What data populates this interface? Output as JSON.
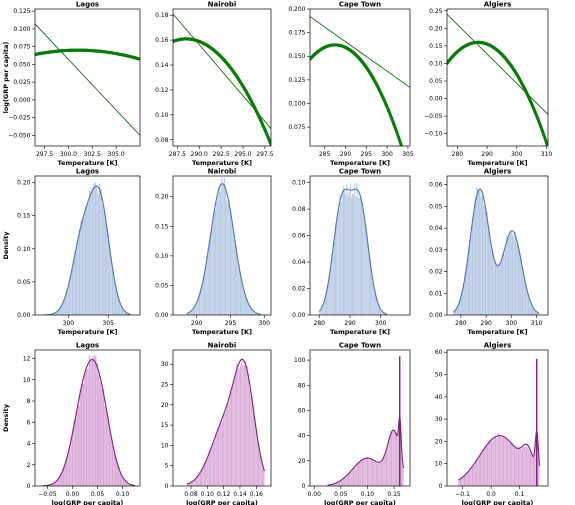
{
  "figure": {
    "title": ""
  },
  "colors": {
    "scatter": "#0a7a0a",
    "fit_line": "#0a6e0a",
    "temp_hist_fill": "#b4c6e2",
    "temp_kde": "#4a73ad",
    "grp_hist_fill": "#d8a8d6",
    "grp_kde": "#7e1f7e"
  },
  "chart_data": [
    {
      "type": "scatter",
      "row": 0,
      "col": 0,
      "title": "Lagos",
      "xlabel": "Temperature [K]",
      "ylabel": "log(GRP per capita)",
      "xlim": [
        296.5,
        307.5
      ],
      "ylim": [
        -0.065,
        0.128
      ],
      "xticks": [
        297.5,
        300.0,
        302.5,
        305.0
      ],
      "yticks": [
        -0.05,
        -0.025,
        0.0,
        0.025,
        0.05,
        0.075,
        0.1,
        0.125
      ],
      "xtick_labels": [
        "297.5",
        "300.0",
        "302.5",
        "305.0"
      ],
      "ytick_labels": [
        "−0.050",
        "−0.025",
        "0.000",
        "0.025",
        "0.050",
        "0.075",
        "0.100",
        "0.125"
      ],
      "quadratic": {
        "a": -0.0003,
        "x0": 301,
        "c": 0.07
      },
      "linear": {
        "x": [
          296.5,
          307.5
        ],
        "y": [
          0.107,
          -0.05
        ]
      },
      "x_range": [
        296.5,
        307.5
      ]
    },
    {
      "type": "scatter",
      "row": 0,
      "col": 1,
      "title": "Nairobi",
      "xlabel": "Temperature [K]",
      "ylabel": "",
      "xlim": [
        287.0,
        298.2
      ],
      "ylim": [
        0.075,
        0.185
      ],
      "xticks": [
        287.5,
        290.0,
        292.5,
        295.0,
        297.5
      ],
      "yticks": [
        0.08,
        0.1,
        0.12,
        0.14,
        0.16,
        0.18
      ],
      "xtick_labels": [
        "287.5",
        "290.0",
        "292.5",
        "295.0",
        "297.5"
      ],
      "ytick_labels": [
        "0.08",
        "0.10",
        "0.12",
        "0.14",
        "0.16",
        "0.18"
      ],
      "quadratic": {
        "a": -0.0009,
        "x0": 288.5,
        "c": 0.161
      },
      "linear": {
        "x": [
          287.0,
          298.2
        ],
        "y": [
          0.181,
          0.089
        ]
      },
      "x_range": [
        287.0,
        298.2
      ]
    },
    {
      "type": "scatter",
      "row": 0,
      "col": 2,
      "title": "Cape Town",
      "xlabel": "Temperature [K]",
      "ylabel": "",
      "xlim": [
        281.5,
        305.5
      ],
      "ylim": [
        0.055,
        0.2
      ],
      "xticks": [
        285,
        290,
        295,
        300,
        305
      ],
      "yticks": [
        0.075,
        0.1,
        0.125,
        0.15,
        0.175,
        0.2
      ],
      "xtick_labels": [
        "285",
        "290",
        "295",
        "300",
        "305"
      ],
      "ytick_labels": [
        "0.075",
        "0.100",
        "0.125",
        "0.150",
        "0.175",
        "0.200"
      ],
      "quadratic": {
        "a": -0.00042,
        "x0": 287.5,
        "c": 0.162
      },
      "linear": {
        "x": [
          281.5,
          305.5
        ],
        "y": [
          0.192,
          0.117
        ]
      },
      "x_range": [
        281.5,
        305.5
      ]
    },
    {
      "type": "scatter",
      "row": 0,
      "col": 3,
      "title": "Algiers",
      "xlabel": "Temperature [K]",
      "ylabel": "",
      "xlim": [
        276.5,
        310.5
      ],
      "ylim": [
        -0.135,
        0.255
      ],
      "xticks": [
        280,
        290,
        300,
        310
      ],
      "yticks": [
        -0.1,
        -0.05,
        0.0,
        0.05,
        0.1,
        0.15,
        0.2,
        0.25
      ],
      "xtick_labels": [
        "280",
        "290",
        "300",
        "310"
      ],
      "ytick_labels": [
        "−0.10",
        "−0.05",
        "0.00",
        "0.05",
        "0.10",
        "0.15",
        "0.20",
        "0.25"
      ],
      "quadratic": {
        "a": -0.00054,
        "x0": 287,
        "c": 0.16
      },
      "linear": {
        "x": [
          276.5,
          310.5
        ],
        "y": [
          0.24,
          -0.045
        ]
      },
      "x_range": [
        276.5,
        310.5
      ]
    },
    {
      "type": "area",
      "row": 1,
      "col": 0,
      "title": "Lagos",
      "kind": "temperature",
      "xlabel": "Temperature [K]",
      "ylabel": "Density",
      "xlim": [
        295.8,
        309.0
      ],
      "ylim": [
        0,
        0.21
      ],
      "xticks": [
        300,
        305
      ],
      "yticks": [
        0.0,
        0.05,
        0.1,
        0.15,
        0.2
      ],
      "xtick_labels": [
        "300",
        "305"
      ],
      "ytick_labels": [
        "0.00",
        "0.05",
        "0.10",
        "0.15",
        "0.20"
      ],
      "components": [
        {
          "mu": 301.8,
          "sigma": 1.3,
          "w": 0.42
        },
        {
          "mu": 304.0,
          "sigma": 1.2,
          "w": 0.58
        }
      ],
      "x_range": [
        297.0,
        307.8
      ],
      "peak": 0.195
    },
    {
      "type": "area",
      "row": 1,
      "col": 1,
      "title": "Nairobi",
      "kind": "temperature",
      "xlabel": "Temperature [K]",
      "ylabel": "",
      "xlim": [
        286.5,
        301.0
      ],
      "ylim": [
        0,
        0.235
      ],
      "xticks": [
        290,
        295,
        300
      ],
      "yticks": [
        0.0,
        0.05,
        0.1,
        0.15,
        0.2
      ],
      "xtick_labels": [
        "290",
        "295",
        "300"
      ],
      "ytick_labels": [
        "0.00",
        "0.05",
        "0.10",
        "0.15",
        "0.20"
      ],
      "components": [
        {
          "mu": 293.8,
          "sigma": 1.75,
          "w": 1.0
        }
      ],
      "x_range": [
        288.5,
        299.5
      ],
      "peak": 0.222
    },
    {
      "type": "area",
      "row": 1,
      "col": 2,
      "title": "Cape Town",
      "kind": "temperature",
      "xlabel": "Temperature [K]",
      "ylabel": "",
      "xlim": [
        277.0,
        309.5
      ],
      "ylim": [
        0,
        0.105
      ],
      "xticks": [
        280,
        290,
        300
      ],
      "yticks": [
        0.0,
        0.02,
        0.04,
        0.06,
        0.08,
        0.1
      ],
      "xtick_labels": [
        "280",
        "290",
        "300"
      ],
      "ytick_labels": [
        "0.00",
        "0.02",
        "0.04",
        "0.06",
        "0.08",
        "0.10"
      ],
      "components": [
        {
          "mu": 287.3,
          "sigma": 2.8,
          "w": 0.5
        },
        {
          "mu": 293.2,
          "sigma": 2.8,
          "w": 0.5
        }
      ],
      "x_range": [
        280.0,
        302.0
      ],
      "peak": 0.095
    },
    {
      "type": "area",
      "row": 1,
      "col": 3,
      "title": "Algiers",
      "kind": "temperature",
      "xlabel": "Temperature [K]",
      "ylabel": "",
      "xlim": [
        274.5,
        314.5
      ],
      "ylim": [
        0,
        0.064
      ],
      "xticks": [
        280,
        290,
        300,
        310
      ],
      "yticks": [
        0.0,
        0.01,
        0.02,
        0.03,
        0.04,
        0.05,
        0.06
      ],
      "xtick_labels": [
        "280",
        "290",
        "300",
        "310"
      ],
      "ytick_labels": [
        "0.00",
        "0.01",
        "0.02",
        "0.03",
        "0.04",
        "0.05",
        "0.06"
      ],
      "components": [
        {
          "mu": 287.5,
          "sigma": 3.8,
          "w": 0.6
        },
        {
          "mu": 300.3,
          "sigma": 3.8,
          "w": 0.4
        }
      ],
      "x_range": [
        277.0,
        311.0
      ],
      "peak": 0.058
    },
    {
      "type": "area",
      "row": 2,
      "col": 0,
      "title": "Lagos",
      "kind": "grp",
      "xlabel": "log(GRP per capita)",
      "ylabel": "Density",
      "xlim": [
        -0.075,
        0.135
      ],
      "ylim": [
        0,
        12.8
      ],
      "xticks": [
        -0.05,
        0.0,
        0.05,
        0.1
      ],
      "yticks": [
        0,
        2,
        4,
        6,
        8,
        10,
        12
      ],
      "xtick_labels": [
        "−0.05",
        "0.00",
        "0.05",
        "0.10"
      ],
      "ytick_labels": [
        "0",
        "2",
        "4",
        "6",
        "8",
        "10",
        "12"
      ],
      "components": [
        {
          "mu": 0.025,
          "sigma": 0.024,
          "w": 0.55
        },
        {
          "mu": 0.055,
          "sigma": 0.022,
          "w": 0.45
        }
      ],
      "x_range": [
        -0.06,
        0.125
      ],
      "peak": 11.9
    },
    {
      "type": "area",
      "row": 2,
      "col": 1,
      "title": "Nairobi",
      "kind": "grp",
      "xlabel": "log(GRP per capita)",
      "ylabel": "",
      "xlim": [
        0.058,
        0.178
      ],
      "ylim": [
        0,
        33.5
      ],
      "xticks": [
        0.08,
        0.1,
        0.12,
        0.14,
        0.16
      ],
      "yticks": [
        0,
        5,
        10,
        15,
        20,
        25,
        30
      ],
      "xtick_labels": [
        "0.08",
        "0.10",
        "0.12",
        "0.14",
        "0.16"
      ],
      "ytick_labels": [
        "0",
        "5",
        "10",
        "15",
        "20",
        "25",
        "30"
      ],
      "components": [
        {
          "mu": 0.123,
          "sigma": 0.018,
          "w": 0.4
        },
        {
          "mu": 0.146,
          "sigma": 0.012,
          "w": 0.6
        }
      ],
      "x_range": [
        0.075,
        0.17
      ],
      "peak": 31.2
    },
    {
      "type": "area",
      "row": 2,
      "col": 2,
      "title": "Cape Town",
      "kind": "grp",
      "xlabel": "log(GRP per capita)",
      "ylabel": "",
      "xlim": [
        -0.008,
        0.18
      ],
      "ylim": [
        0,
        108
      ],
      "xticks": [
        0.0,
        0.05,
        0.1,
        0.15
      ],
      "yticks": [
        0,
        20,
        40,
        60,
        80,
        100
      ],
      "xtick_labels": [
        "0.00",
        "0.05",
        "0.10",
        "0.15"
      ],
      "ytick_labels": [
        "0",
        "20",
        "40",
        "60",
        "80",
        "100"
      ],
      "components": [
        {
          "mu": 0.1,
          "sigma": 0.028,
          "w": 0.25
        },
        {
          "mu": 0.15,
          "sigma": 0.012,
          "w": 0.45
        },
        {
          "mu": 0.161,
          "sigma": 0.0022,
          "w": 0.3
        }
      ],
      "x_range": [
        0.025,
        0.168
      ],
      "peak": 55,
      "spike_x": 0.1605,
      "spike_y": 103
    },
    {
      "type": "area",
      "row": 2,
      "col": 3,
      "title": "Algiers",
      "kind": "grp",
      "xlabel": "log(GRP per capita)",
      "ylabel": "",
      "xlim": [
        -0.155,
        0.2
      ],
      "ylim": [
        0,
        61
      ],
      "xticks": [
        -0.1,
        0.0,
        0.1
      ],
      "yticks": [
        0,
        10,
        20,
        30,
        40,
        50,
        60
      ],
      "xtick_labels": [
        "−0.1",
        "0.0",
        "0.1"
      ],
      "ytick_labels": [
        "0",
        "10",
        "20",
        "30",
        "40",
        "50",
        "60"
      ],
      "components": [
        {
          "mu": 0.03,
          "sigma": 0.07,
          "w": 0.45
        },
        {
          "mu": 0.13,
          "sigma": 0.02,
          "w": 0.2
        },
        {
          "mu": 0.161,
          "sigma": 0.0055,
          "w": 0.35
        }
      ],
      "x_range": [
        -0.115,
        0.17
      ],
      "peak": 24.5,
      "spike_x": 0.16,
      "spike_y": 57
    }
  ]
}
